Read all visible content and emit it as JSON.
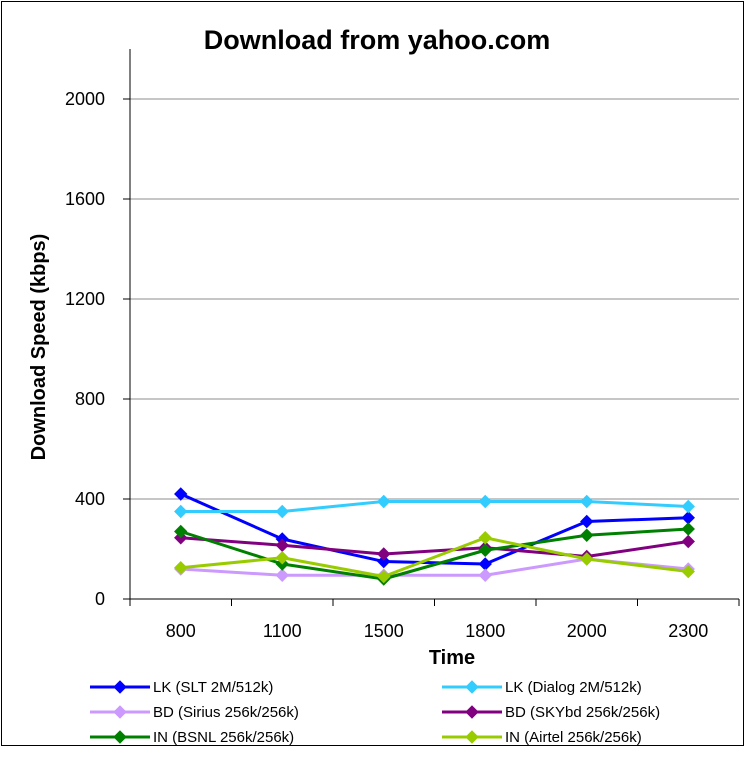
{
  "chart_data": {
    "type": "line",
    "title": "Download from yahoo.com",
    "xlabel": "Time",
    "ylabel": "Download Speed (kbps)",
    "categories": [
      "800",
      "1100",
      "1500",
      "1800",
      "2000",
      "2300"
    ],
    "ylim": [
      0,
      2200
    ],
    "yticks": [
      "0",
      "400",
      "800",
      "1200",
      "1600",
      "2000"
    ],
    "ytick_values": [
      0,
      400,
      800,
      1200,
      1600,
      2000
    ],
    "grid": true,
    "legend_position": "bottom",
    "series": [
      {
        "name": "LK (SLT 2M/512k)",
        "color": "#0000ff",
        "values": [
          420,
          240,
          150,
          140,
          310,
          325
        ]
      },
      {
        "name": "LK (Dialog 2M/512k)",
        "color": "#33ccff",
        "values": [
          350,
          350,
          390,
          390,
          390,
          370
        ]
      },
      {
        "name": "BD (Sirius 256k/256k)",
        "color": "#cc99ff",
        "values": [
          120,
          95,
          95,
          95,
          160,
          120
        ]
      },
      {
        "name": "BD (SKYbd 256k/256k)",
        "color": "#800080",
        "values": [
          245,
          215,
          180,
          205,
          170,
          230
        ]
      },
      {
        "name": "IN (BSNL 256k/256k)",
        "color": "#008000",
        "values": [
          270,
          140,
          80,
          195,
          255,
          280
        ]
      },
      {
        "name": "IN (Airtel 256k/256k)",
        "color": "#99cc00",
        "values": [
          125,
          165,
          90,
          245,
          160,
          110
        ]
      }
    ]
  }
}
